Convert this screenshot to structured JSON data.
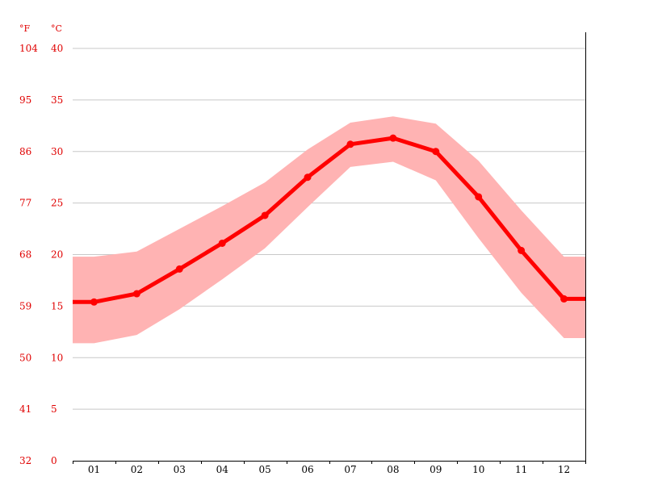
{
  "colors": {
    "line": "#ff0000",
    "band": "#ffb3b3",
    "axis_text": "#e00000",
    "grid": "#c8c8c8",
    "axis": "#000000"
  },
  "chart_data": {
    "type": "line",
    "title": "",
    "xlabel": "",
    "ylabel": "",
    "units": {
      "fahrenheit": "°F",
      "celsius": "°C"
    },
    "categories": [
      "01",
      "02",
      "03",
      "04",
      "05",
      "06",
      "07",
      "08",
      "09",
      "10",
      "11",
      "12"
    ],
    "ylim": [
      0,
      40
    ],
    "yticks_celsius": [
      "0",
      "5",
      "10",
      "15",
      "20",
      "25",
      "30",
      "35",
      "40"
    ],
    "yticks_fahrenheit": [
      "32",
      "41",
      "50",
      "59",
      "68",
      "77",
      "86",
      "95",
      "104"
    ],
    "grid": true,
    "series": [
      {
        "values": [
          15.4,
          16.2,
          18.6,
          21.1,
          23.8,
          27.5,
          30.7,
          31.3,
          30.0,
          25.6,
          20.4,
          15.7
        ]
      }
    ],
    "band": {
      "upper": [
        19.8,
        20.3,
        22.5,
        24.7,
        27.0,
        30.2,
        32.8,
        33.4,
        32.7,
        29.1,
        24.3,
        19.8
      ],
      "lower": [
        11.4,
        12.2,
        14.7,
        17.6,
        20.6,
        24.6,
        28.5,
        29.0,
        27.2,
        21.6,
        16.3,
        11.9
      ]
    }
  }
}
